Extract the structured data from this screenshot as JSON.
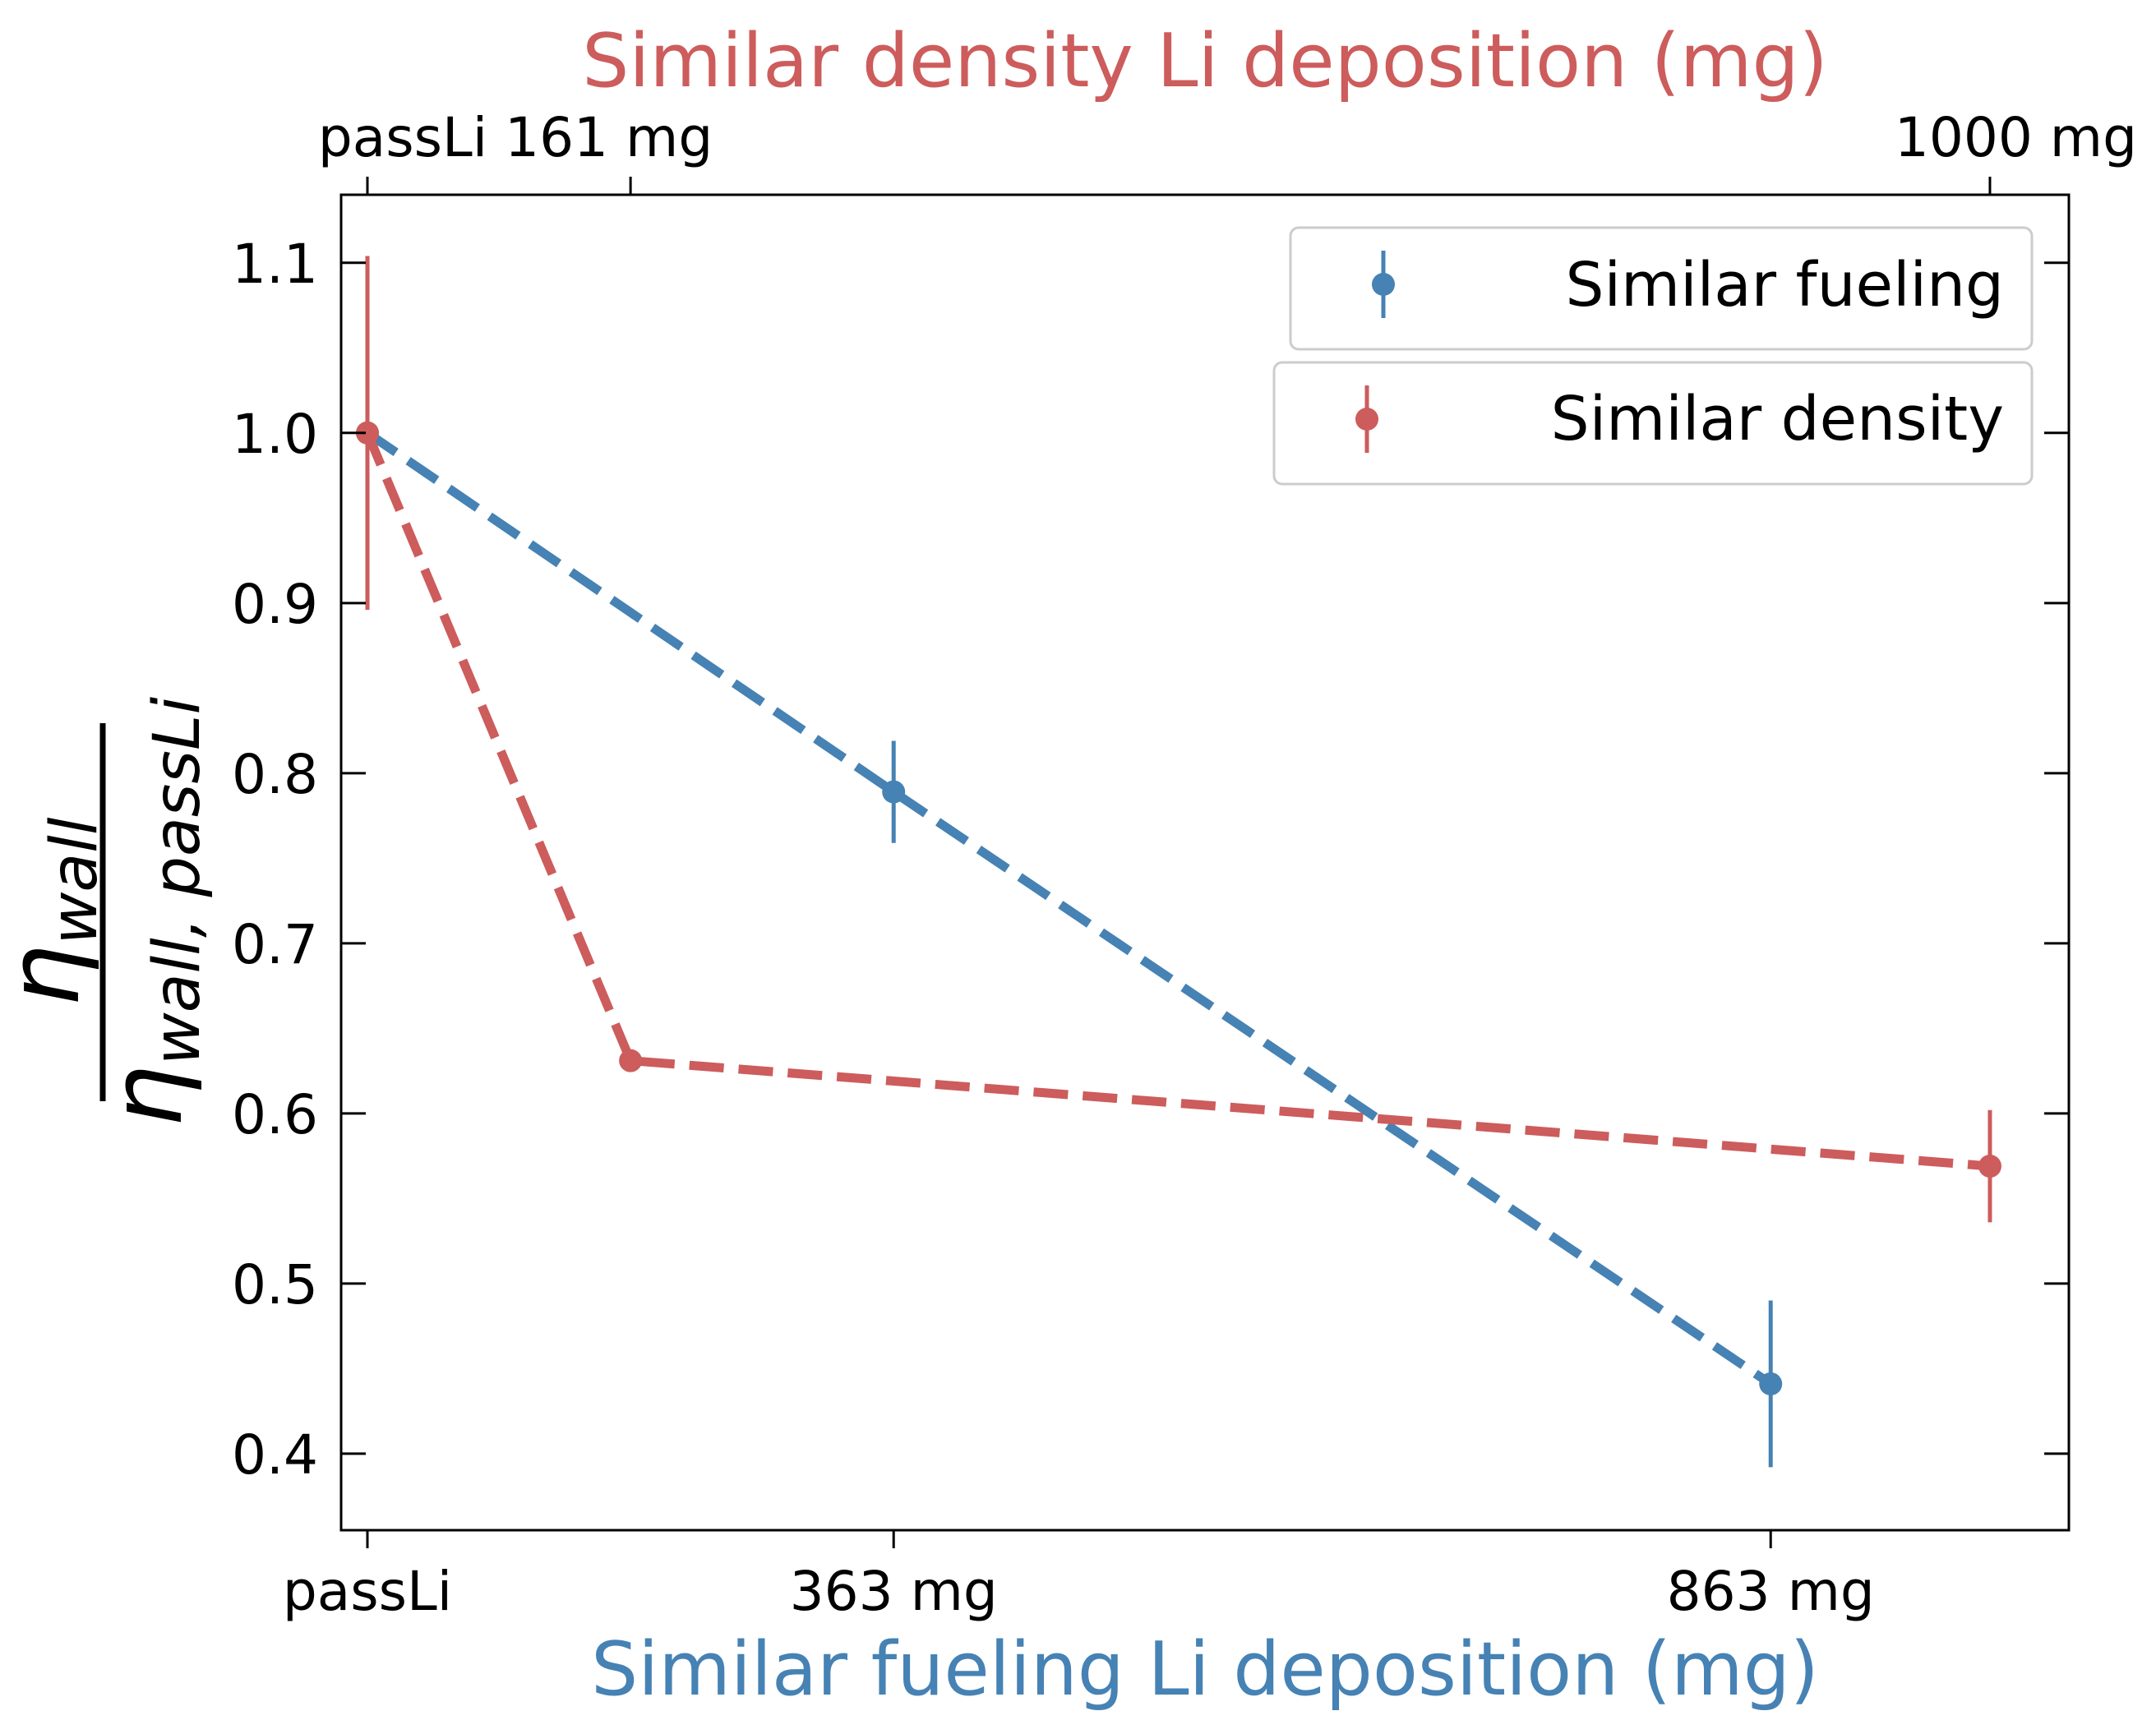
{
  "chart_data": {
    "type": "line",
    "title": "Similar density Li deposition (mg)",
    "xlabel": "Similar fueling Li deposition (mg)",
    "ylabel_main": "η",
    "ylabel_num_sub": "wall",
    "ylabel_den_sub": "wall, passLi",
    "ylim": [
      0.355,
      1.14
    ],
    "y_ticks": [
      0.4,
      0.5,
      0.6,
      0.7,
      0.8,
      0.9,
      1.0,
      1.1
    ],
    "y_tick_labels": [
      "0.4",
      "0.5",
      "0.6",
      "0.7",
      "0.8",
      "0.9",
      "1.0",
      "1.1"
    ],
    "bottom_axis": {
      "categories": [
        "passLi",
        "363 mg",
        "863 mg"
      ],
      "positions": [
        0,
        3,
        8
      ]
    },
    "top_axis": {
      "categories": [
        "passLi 161 mg",
        "1000 mg"
      ],
      "positions": [
        1.5,
        9.25
      ],
      "first_tick_position": 0
    },
    "xlim": [
      -0.15,
      9.7
    ],
    "grid": false,
    "legend_placement": "top-right",
    "series": [
      {
        "name": "Similar fueling",
        "color": "#4682b4",
        "linestyle": "dashed",
        "points": [
          {
            "x": 0,
            "y": 1.0,
            "err": 0.0
          },
          {
            "x": 3,
            "y": 0.789,
            "err": 0.03
          },
          {
            "x": 8,
            "y": 0.441,
            "err": 0.049
          }
        ]
      },
      {
        "name": "Similar density",
        "color": "#cd5c5c",
        "linestyle": "dashed",
        "points": [
          {
            "x": 0,
            "y": 1.0,
            "err": 0.104
          },
          {
            "x": 1.5,
            "y": 0.631,
            "err": 0.0
          },
          {
            "x": 9.25,
            "y": 0.569,
            "err": 0.033
          }
        ]
      }
    ]
  }
}
